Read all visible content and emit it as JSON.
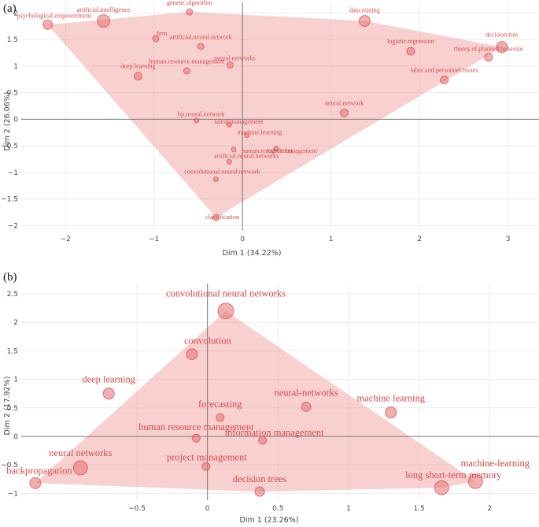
{
  "chart_data": [
    {
      "type": "scatter",
      "panel_label": "(a)",
      "xlabel": "Dim 1 (34.22%)",
      "ylabel": "Dim 2 (26.06%)",
      "xlim": [
        -2.5,
        3.35
      ],
      "ylim": [
        -2.1,
        2.2
      ],
      "xticks": [
        -2,
        -1,
        0,
        1,
        2,
        3
      ],
      "yticks": [
        -2,
        -1.5,
        -1,
        -0.5,
        0,
        0.5,
        1,
        1.5,
        2
      ],
      "hull_order": [
        "psychological.empowerment",
        "genetic.algorithm",
        "data.mining",
        "decision.tree",
        "classification"
      ],
      "points": [
        {
          "label": "psychological.empowerment",
          "x": -2.2,
          "y": 1.78,
          "size": 6
        },
        {
          "label": "artificial.intelligence",
          "x": -1.57,
          "y": 1.85,
          "size": 8
        },
        {
          "label": "genetic.algorithm",
          "x": -0.6,
          "y": 2.02,
          "size": 4
        },
        {
          "label": "hrm",
          "x": -0.98,
          "y": 1.52,
          "size": 4
        },
        {
          "label": "artificial.neural.network",
          "x": -0.47,
          "y": 1.37,
          "size": 4
        },
        {
          "label": "human.resource.management",
          "x": -0.63,
          "y": 0.91,
          "size": 4
        },
        {
          "label": "neural.networks",
          "x": -0.14,
          "y": 1.02,
          "size": 4
        },
        {
          "label": "deep.learning",
          "x": -1.18,
          "y": 0.81,
          "size": 5
        },
        {
          "label": "data.mining",
          "x": 1.38,
          "y": 1.85,
          "size": 7
        },
        {
          "label": "logistic.regression",
          "x": 1.9,
          "y": 1.28,
          "size": 5
        },
        {
          "label": "decision.tree",
          "x": 2.93,
          "y": 1.36,
          "size": 7
        },
        {
          "label": "theory.of.planned.behavior",
          "x": 2.78,
          "y": 1.17,
          "size": 5
        },
        {
          "label": "labor.and.personnel.issues",
          "x": 2.28,
          "y": 0.74,
          "size": 5
        },
        {
          "label": "neural.network",
          "x": 1.15,
          "y": 0.12,
          "size": 5
        },
        {
          "label": "bp.neural.network",
          "x": -0.52,
          "y": -0.02,
          "size": 3
        },
        {
          "label": "talent.management",
          "x": -0.15,
          "y": -0.1,
          "size": 3
        },
        {
          "label": "machine.learning",
          "x": 0.05,
          "y": -0.3,
          "size": 3
        },
        {
          "label": "regression",
          "x": 0.38,
          "y": -0.55,
          "size": 3
        },
        {
          "label": "human.resource.management",
          "x": -0.1,
          "y": -0.57,
          "size": 3
        },
        {
          "label": "artificial.neural.networks",
          "x": -0.15,
          "y": -0.8,
          "size": 3
        },
        {
          "label": "convolutional.neural.network",
          "x": -0.3,
          "y": -1.13,
          "size": 3
        },
        {
          "label": "classification",
          "x": -0.3,
          "y": -1.85,
          "size": 4
        }
      ]
    },
    {
      "type": "scatter",
      "panel_label": "(b)",
      "xlabel": "Dim 1 (23.26%)",
      "ylabel": "Dim 2 (17.92%)",
      "xlim": [
        -1.32,
        2.35
      ],
      "ylim": [
        -1.12,
        2.68
      ],
      "xticks": [
        -0.5,
        0,
        0.5,
        1,
        1.5,
        2
      ],
      "yticks": [
        -1,
        -0.5,
        0,
        0.5,
        1,
        1.5,
        2,
        2.5
      ],
      "hull_order": [
        "backpropagation",
        "convolutional neural networks",
        "machine-learning",
        "long short-term memory",
        "decision trees"
      ],
      "points": [
        {
          "label": "convolutional neural networks",
          "x": 0.13,
          "y": 2.2,
          "size": 10
        },
        {
          "label": "convolution",
          "x": -0.11,
          "y": 1.44,
          "size": 7
        },
        {
          "label": "deep learning",
          "x": -0.7,
          "y": 0.75,
          "size": 7
        },
        {
          "label": "neural-networks",
          "x": 0.7,
          "y": 0.52,
          "size": 6
        },
        {
          "label": "machine learning",
          "x": 1.3,
          "y": 0.42,
          "size": 7
        },
        {
          "label": "forecasting",
          "x": 0.09,
          "y": 0.33,
          "size": 5
        },
        {
          "label": "human resource management",
          "x": -0.08,
          "y": -0.03,
          "size": 5
        },
        {
          "label": "information management",
          "x": 0.39,
          "y": -0.07,
          "size": 5
        },
        {
          "label": "neural networks",
          "x": -0.9,
          "y": -0.55,
          "size": 9
        },
        {
          "label": "project management",
          "x": -0.01,
          "y": -0.53,
          "size": 5
        },
        {
          "label": "backpropagation",
          "x": -1.22,
          "y": -0.82,
          "size": 7
        },
        {
          "label": "decision trees",
          "x": 0.37,
          "y": -0.97,
          "size": 6
        },
        {
          "label": "long short-term memory",
          "x": 1.66,
          "y": -0.9,
          "size": 9
        },
        {
          "label": "machine-learning",
          "x": 1.9,
          "y": -0.79,
          "size": 9
        }
      ]
    }
  ]
}
